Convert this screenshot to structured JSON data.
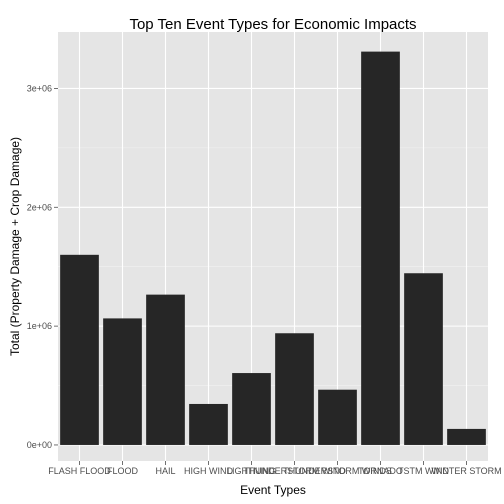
{
  "chart_data": {
    "type": "bar",
    "title": "Top Ten Event Types for Economic Impacts",
    "xlabel": "Event Types",
    "ylabel": "Total (Property Damage + Crop Damage)",
    "categories": [
      "FLASH FLOOD",
      "FLOOD",
      "HAIL",
      "HIGH WIND",
      "LIGHTNING",
      "THUNDERSTORM WIND",
      "THUNDERSTORM WINDS",
      "TORNADO",
      "TSTM WIND",
      "WINTER STORM"
    ],
    "values": [
      1600000,
      1065000,
      1265000,
      345000,
      605000,
      940000,
      465000,
      3310000,
      1445000,
      135000
    ],
    "ylim": [
      -135000,
      3475000
    ],
    "yticks": [
      0,
      1000000,
      2000000,
      3000000
    ],
    "ytick_labels": [
      "0e+00",
      "1e+06",
      "2e+06",
      "3e+06"
    ],
    "grid": true,
    "legend": "none",
    "colors": {
      "bar": "#262626",
      "panel": "#e5e5e5",
      "grid_major": "#ffffff",
      "grid_minor": "#f2f2f2"
    }
  }
}
